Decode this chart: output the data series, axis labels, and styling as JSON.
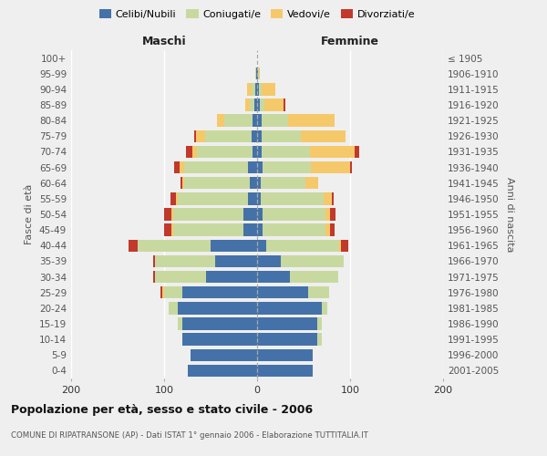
{
  "age_groups": [
    "0-4",
    "5-9",
    "10-14",
    "15-19",
    "20-24",
    "25-29",
    "30-34",
    "35-39",
    "40-44",
    "45-49",
    "50-54",
    "55-59",
    "60-64",
    "65-69",
    "70-74",
    "75-79",
    "80-84",
    "85-89",
    "90-94",
    "95-99",
    "100+"
  ],
  "birth_years": [
    "2001-2005",
    "1996-2000",
    "1991-1995",
    "1986-1990",
    "1981-1985",
    "1976-1980",
    "1971-1975",
    "1966-1970",
    "1961-1965",
    "1956-1960",
    "1951-1955",
    "1946-1950",
    "1941-1945",
    "1936-1940",
    "1931-1935",
    "1926-1930",
    "1921-1925",
    "1916-1920",
    "1911-1915",
    "1906-1910",
    "≤ 1905"
  ],
  "maschi": {
    "celibi": [
      75,
      72,
      80,
      80,
      85,
      80,
      55,
      45,
      50,
      15,
      15,
      10,
      8,
      10,
      5,
      6,
      5,
      3,
      2,
      1,
      0
    ],
    "coniugati": [
      0,
      0,
      0,
      5,
      10,
      20,
      55,
      65,
      78,
      75,
      75,
      75,
      70,
      68,
      60,
      50,
      30,
      5,
      4,
      1,
      0
    ],
    "vedovi": [
      0,
      0,
      0,
      0,
      0,
      2,
      0,
      0,
      0,
      2,
      2,
      2,
      2,
      5,
      5,
      10,
      8,
      5,
      5,
      0,
      0
    ],
    "divorziati": [
      0,
      0,
      0,
      0,
      0,
      2,
      2,
      2,
      10,
      8,
      8,
      6,
      2,
      6,
      6,
      2,
      0,
      0,
      0,
      0,
      0
    ]
  },
  "femmine": {
    "nubili": [
      60,
      60,
      65,
      65,
      70,
      55,
      35,
      25,
      10,
      6,
      6,
      4,
      4,
      6,
      5,
      5,
      5,
      3,
      2,
      1,
      0
    ],
    "coniugate": [
      0,
      0,
      5,
      5,
      5,
      22,
      52,
      68,
      78,
      68,
      68,
      68,
      48,
      52,
      52,
      42,
      28,
      5,
      3,
      1,
      0
    ],
    "vedove": [
      0,
      0,
      0,
      0,
      0,
      0,
      0,
      0,
      2,
      4,
      4,
      8,
      14,
      42,
      48,
      48,
      50,
      20,
      15,
      1,
      0
    ],
    "divorziate": [
      0,
      0,
      0,
      0,
      0,
      0,
      0,
      0,
      8,
      5,
      6,
      2,
      0,
      2,
      5,
      0,
      0,
      2,
      0,
      0,
      0
    ]
  },
  "colors": {
    "celibi": "#4472a8",
    "coniugati": "#c8d9a0",
    "vedovi": "#f5c96a",
    "divorziati": "#c0392b"
  },
  "title": "Popolazione per età, sesso e stato civile - 2006",
  "subtitle": "COMUNE DI RIPATRANSONE (AP) - Dati ISTAT 1° gennaio 2006 - Elaborazione TUTTITALIA.IT",
  "xlabel_left": "Maschi",
  "xlabel_right": "Femmine",
  "ylabel_left": "Fasce di età",
  "ylabel_right": "Anni di nascita",
  "xlim": 200,
  "background_color": "#efefef",
  "legend_labels": [
    "Celibi/Nubili",
    "Coniugati/e",
    "Vedovi/e",
    "Divorziati/e"
  ]
}
